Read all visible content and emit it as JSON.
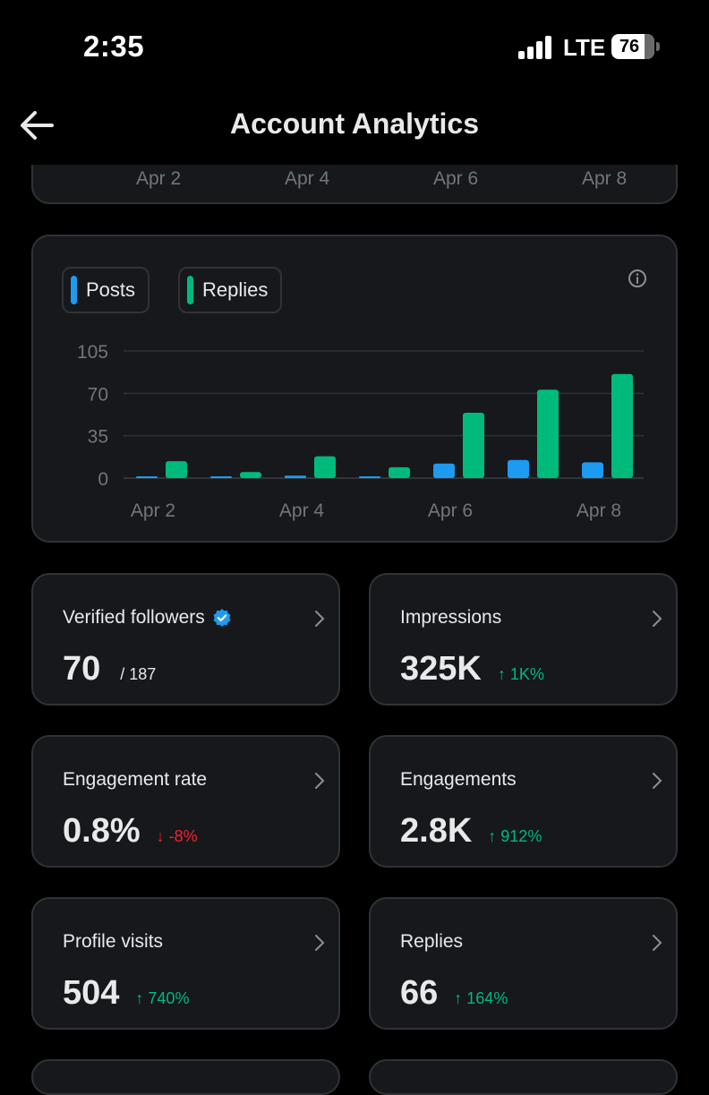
{
  "status_bar": {
    "time": "2:35",
    "network": "LTE",
    "battery": "76"
  },
  "header": {
    "title": "Account Analytics"
  },
  "top_chart": {
    "x_labels": [
      "Apr 2",
      "Apr 4",
      "Apr 6",
      "Apr 8"
    ]
  },
  "colors": {
    "posts": "#1d9bf0",
    "replies": "#00ba7c",
    "up": "#00ba7c",
    "down": "#f4212e"
  },
  "legend": {
    "posts": "Posts",
    "replies": "Replies"
  },
  "chart_data": {
    "type": "bar",
    "categories": [
      "Apr 2",
      "Apr 3",
      "Apr 4",
      "Apr 5",
      "Apr 6",
      "Apr 7",
      "Apr 8"
    ],
    "x_tick_labels": [
      "Apr 2",
      "Apr 4",
      "Apr 6",
      "Apr 8"
    ],
    "series": [
      {
        "name": "Posts",
        "values": [
          1,
          0.5,
          2,
          0.5,
          12,
          15,
          13
        ]
      },
      {
        "name": "Replies",
        "values": [
          14,
          5,
          18,
          9,
          54,
          73,
          86
        ]
      }
    ],
    "y_ticks": [
      0,
      35,
      70,
      105
    ],
    "ylim": [
      0,
      105
    ],
    "grid": true,
    "legend": "top-left"
  },
  "stats": [
    {
      "label": "Verified followers",
      "value": "70",
      "total": "/ 187",
      "verified": true
    },
    {
      "label": "Impressions",
      "value": "325K",
      "change": "↑ 1K%",
      "direction": "up"
    },
    {
      "label": "Engagement rate",
      "value": "0.8%",
      "change": "↓ -8%",
      "direction": "down"
    },
    {
      "label": "Engagements",
      "value": "2.8K",
      "change": "↑ 912%",
      "direction": "up"
    },
    {
      "label": "Profile visits",
      "value": "504",
      "change": "↑ 740%",
      "direction": "up"
    },
    {
      "label": "Replies",
      "value": "66",
      "change": "↑ 164%",
      "direction": "up"
    }
  ]
}
